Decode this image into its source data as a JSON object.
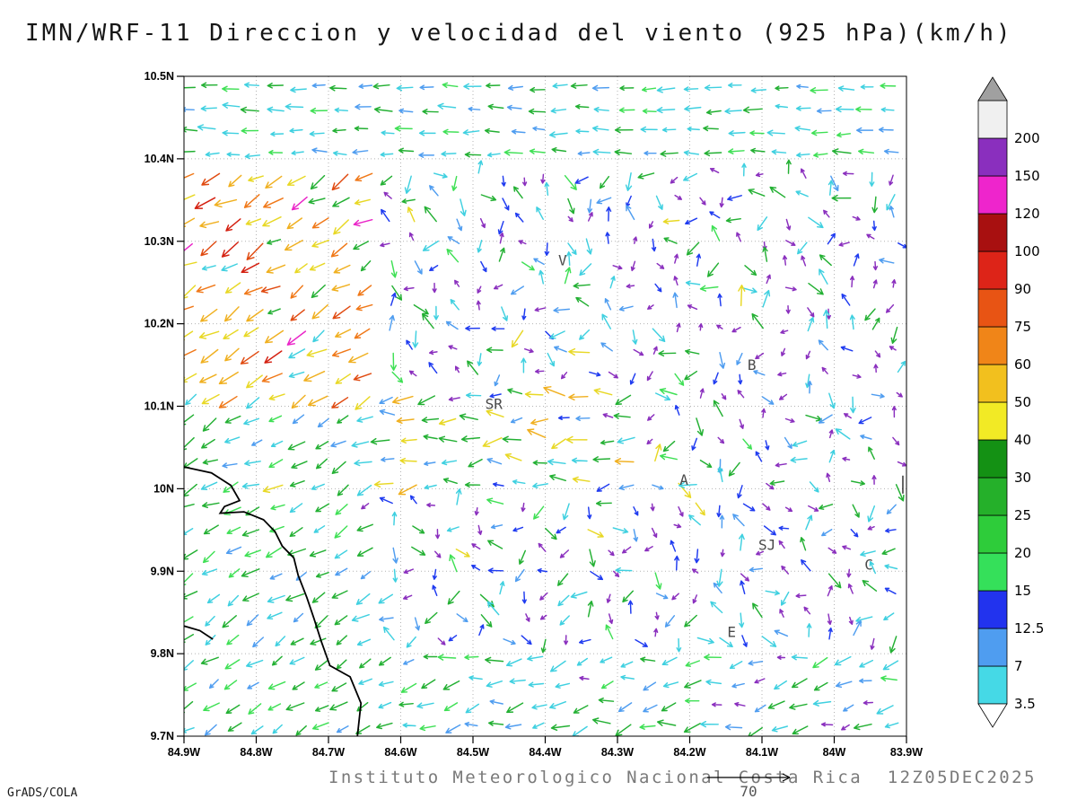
{
  "chart_data": {
    "type": "vector_field",
    "title": "IMN/WRF-11 Direccion y velocidad del viento (925 hPa)(km/h)",
    "subtitle": "Instituto Meteorologico Nacional Costa Rica  12Z05DEC2025",
    "credit": "GrADS/COLA",
    "variable": "Direccion y velocidad del viento",
    "level": "925 hPa",
    "units": "km/h",
    "valid_time": "12Z05DEC2025",
    "model": "IMN/WRF-11",
    "lon_ticks": [
      "84.9W",
      "84.8W",
      "84.7W",
      "84.6W",
      "84.5W",
      "84.4W",
      "84.3W",
      "84.2W",
      "84.1W",
      "84W",
      "83.9W"
    ],
    "lat_ticks": [
      "10.5N",
      "10.4N",
      "10.3N",
      "10.2N",
      "10.1N",
      "10N",
      "9.9N",
      "9.8N",
      "9.7N"
    ],
    "lon_range": [
      -84.9,
      -83.9
    ],
    "lat_range": [
      9.7,
      10.5
    ],
    "grid": {
      "cols": 33,
      "rows": 30,
      "jitter": 6,
      "seed": 11
    },
    "reference_vector": {
      "value": "70"
    },
    "colorbar": {
      "labels": [
        "3.5",
        "7",
        "12.5",
        "15",
        "20",
        "25",
        "30",
        "40",
        "50",
        "60",
        "75",
        "90",
        "100",
        "120",
        "150",
        "200"
      ],
      "band_colors": [
        "#45d9e6",
        "#4f9df0",
        "#2233ee",
        "#35e05a",
        "#2ecc3a",
        "#25b02a",
        "#149114",
        "#f2ea25",
        "#f2c01e",
        "#f08518",
        "#e85414",
        "#dd2418",
        "#a81010",
        "#ee25cc",
        "#8a2fbe"
      ],
      "over_color": "#f0f0f0",
      "cap_color": "#a0a0a0",
      "under_color": "#ffffff"
    },
    "arrow_styles": {
      "purple": {
        "hex": "#8a2fbe",
        "len": [
          7,
          12
        ]
      },
      "blue": {
        "hex": "#1f3bf0",
        "len": [
          10,
          16
        ]
      },
      "lightblue": {
        "hex": "#4f9df0",
        "len": [
          12,
          18
        ]
      },
      "cyan": {
        "hex": "#3fd0e0",
        "len": [
          13,
          20
        ]
      },
      "green": {
        "hex": "#23b033",
        "len": [
          14,
          21
        ]
      },
      "brightgreen": {
        "hex": "#3fe055",
        "len": [
          14,
          20
        ]
      },
      "yellow": {
        "hex": "#e8d825",
        "len": [
          16,
          23
        ]
      },
      "gold": {
        "hex": "#f0b020",
        "len": [
          18,
          25
        ]
      },
      "orange": {
        "hex": "#f07818",
        "len": [
          18,
          25
        ]
      },
      "deeporange": {
        "hex": "#e04a10",
        "len": [
          19,
          26
        ]
      },
      "red": {
        "hex": "#d42010",
        "len": [
          20,
          26
        ]
      },
      "magenta": {
        "hex": "#ea25c8",
        "len": [
          21,
          26
        ]
      }
    },
    "regions": [
      {
        "name": "top-easterly",
        "rows": [
          0,
          3
        ],
        "cols": [
          0,
          32
        ],
        "angle": 180,
        "spread": 16,
        "palette": {
          "cyan": 40,
          "green": 25,
          "brightgreen": 15,
          "lightblue": 20
        }
      },
      {
        "name": "nw-warm-jet",
        "rows": [
          4,
          14
        ],
        "cols": [
          0,
          8
        ],
        "angle": 210,
        "spread": 34,
        "palette": {
          "yellow": 24,
          "gold": 26,
          "orange": 20,
          "deeporange": 7,
          "red": 5,
          "green": 8,
          "cyan": 7,
          "magenta": 3
        }
      },
      {
        "name": "west-green",
        "rows": [
          15,
          19
        ],
        "cols": [
          0,
          7
        ],
        "angle": 206,
        "spread": 38,
        "palette": {
          "green": 40,
          "cyan": 20,
          "brightgreen": 15,
          "yellow": 10,
          "lightblue": 15
        }
      },
      {
        "name": "sw-green",
        "rows": [
          20,
          29
        ],
        "cols": [
          0,
          8
        ],
        "angle": 212,
        "spread": 28,
        "palette": {
          "green": 42,
          "brightgreen": 18,
          "cyan": 26,
          "lightblue": 14
        }
      },
      {
        "name": "south-cyan",
        "rows": [
          26,
          29
        ],
        "cols": [
          9,
          32
        ],
        "angle": 192,
        "spread": 50,
        "palette": {
          "cyan": 38,
          "green": 26,
          "lightblue": 16,
          "brightgreen": 10,
          "purple": 10
        }
      },
      {
        "name": "mid-shear-band",
        "rows": [
          14,
          18
        ],
        "cols": [
          9,
          20
        ],
        "angle": 186,
        "spread": 60,
        "palette": {
          "green": 28,
          "yellow": 16,
          "gold": 12,
          "cyan": 16,
          "lightblue": 12,
          "blue": 10,
          "purple": 6
        }
      },
      {
        "name": "east-mixed",
        "rows": [
          4,
          25
        ],
        "cols": [
          26,
          32
        ],
        "angle": 205,
        "spread": 300,
        "palette": {
          "purple": 40,
          "cyan": 18,
          "blue": 14,
          "lightblue": 13,
          "green": 15
        }
      },
      {
        "name": "central-mixed",
        "rows": [
          4,
          25
        ],
        "cols": [
          9,
          25
        ],
        "angle": 205,
        "spread": 280,
        "palette": {
          "purple": 29,
          "blue": 20,
          "cyan": 17,
          "lightblue": 13,
          "green": 13,
          "brightgreen": 5,
          "yellow": 3
        }
      },
      {
        "name": "default",
        "rows": [
          0,
          29
        ],
        "cols": [
          0,
          32
        ],
        "angle": 190,
        "spread": 60,
        "palette": {
          "cyan": 40,
          "green": 30,
          "lightblue": 20,
          "purple": 10
        }
      }
    ],
    "highlights": [
      {
        "row": 11,
        "col": 5,
        "color": "magenta"
      },
      {
        "row": 7,
        "col": 2,
        "color": "red"
      },
      {
        "row": 9,
        "col": 4,
        "color": "deeporange"
      },
      {
        "row": 5,
        "col": 1,
        "color": "red"
      }
    ],
    "stations": [
      {
        "label": "V",
        "lon": -84.376,
        "lat": 10.271
      },
      {
        "label": "B",
        "lon": -84.114,
        "lat": 10.144
      },
      {
        "label": "SR",
        "lon": -84.471,
        "lat": 10.097
      },
      {
        "label": "A",
        "lon": -84.208,
        "lat": 10.005
      },
      {
        "label": "SJ",
        "lon": -84.093,
        "lat": 9.926
      },
      {
        "label": "C",
        "lon": -83.952,
        "lat": 9.902
      },
      {
        "label": "E",
        "lon": -84.142,
        "lat": 9.82
      }
    ],
    "edge_mark": {
      "lon": -83.905,
      "lat": 10.005
    },
    "coastline": [
      [
        [
          0.0,
          0.592
        ],
        [
          0.038,
          0.601
        ],
        [
          0.065,
          0.62
        ],
        [
          0.077,
          0.643
        ],
        [
          0.056,
          0.652
        ],
        [
          0.05,
          0.662
        ],
        [
          0.083,
          0.66
        ],
        [
          0.11,
          0.672
        ],
        [
          0.126,
          0.69
        ],
        [
          0.136,
          0.712
        ],
        [
          0.152,
          0.73
        ],
        [
          0.158,
          0.756
        ],
        [
          0.17,
          0.79
        ],
        [
          0.18,
          0.822
        ],
        [
          0.19,
          0.856
        ],
        [
          0.202,
          0.893
        ],
        [
          0.23,
          0.91
        ],
        [
          0.245,
          0.95
        ],
        [
          0.24,
          1.0
        ]
      ],
      [
        [
          0.0,
          0.833
        ],
        [
          0.022,
          0.84
        ],
        [
          0.04,
          0.853
        ]
      ]
    ]
  }
}
